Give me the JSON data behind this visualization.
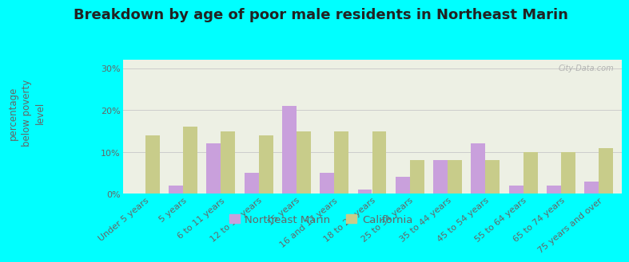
{
  "title": "Breakdown by age of poor male residents in Northeast Marin",
  "ylabel": "percentage\nbelow poverty\nlevel",
  "categories": [
    "Under 5 years",
    "5 years",
    "6 to 11 years",
    "12 to 14 years",
    "15 years",
    "16 and 17 years",
    "18 to 24 years",
    "25 to 34 years",
    "35 to 44 years",
    "45 to 54 years",
    "55 to 64 years",
    "65 to 74 years",
    "75 years and over"
  ],
  "ne_marin": [
    0.0,
    2.0,
    12.0,
    5.0,
    21.0,
    5.0,
    1.0,
    4.0,
    8.0,
    12.0,
    2.0,
    2.0,
    3.0
  ],
  "california": [
    14.0,
    16.0,
    15.0,
    14.0,
    15.0,
    15.0,
    15.0,
    8.0,
    8.0,
    8.0,
    10.0,
    10.0,
    11.0
  ],
  "ne_marin_color": "#c9a0dc",
  "california_color": "#c8cc8a",
  "background_color": "#00ffff",
  "plot_bg_color": "#edf0e4",
  "ylim": [
    0,
    32
  ],
  "yticks": [
    0,
    10,
    20,
    30
  ],
  "ytick_labels": [
    "0%",
    "10%",
    "20%",
    "30%"
  ],
  "title_fontsize": 13,
  "axis_label_fontsize": 8.5,
  "tick_fontsize": 8,
  "legend_fontsize": 9.5,
  "bar_width": 0.38,
  "watermark": "City-Data.com"
}
